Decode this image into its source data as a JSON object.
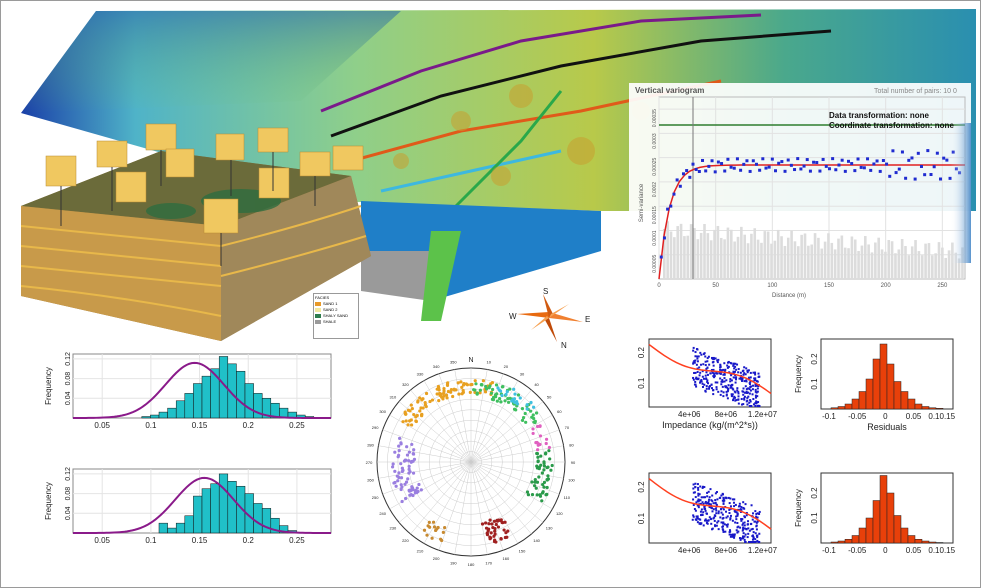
{
  "variogram": {
    "title": "Vertical variogram",
    "pairs_label": "Total number of pairs: 10 0",
    "data_transform": "Data transformation: none",
    "coord_transform": "Coordinate transformation: none",
    "ylabel": "Semi-variance",
    "xlabel": "Distance (m)",
    "xticks": [
      "0",
      "50",
      "100",
      "150",
      "200",
      "250"
    ],
    "yticks": [
      "0.00005",
      "0.0001",
      "0.00015",
      "0.0002",
      "0.00025",
      "0.0003",
      "0.00035"
    ]
  },
  "facies_legend": {
    "title": "FACIES",
    "items": [
      "SAND 1",
      "SAND 2",
      "SHALY SAND",
      "SHALE"
    ],
    "colors": [
      "#e89a2a",
      "#f2e9a0",
      "#2e7d4f",
      "#9a9a9a"
    ]
  },
  "compass": {
    "n": "N",
    "s": "S",
    "e": "E",
    "w": "W"
  },
  "histograms": [
    {
      "ylabel": "Frequency",
      "yticks": [
        "0.04",
        "0.08",
        "0.12"
      ],
      "xticks": [
        "0.05",
        "0.1",
        "0.15",
        "0.2",
        "0.25"
      ],
      "values": [
        0,
        0,
        0,
        0,
        0,
        0,
        0,
        0,
        0.003,
        0.006,
        0.012,
        0.02,
        0.035,
        0.05,
        0.07,
        0.085,
        0.1,
        0.125,
        0.11,
        0.095,
        0.07,
        0.05,
        0.04,
        0.03,
        0.02,
        0.012,
        0.006,
        0.003,
        0,
        0
      ]
    },
    {
      "ylabel": "Frequency",
      "yticks": [
        "0.04",
        "0.08",
        "0.12"
      ],
      "xticks": [
        "0.05",
        "0.1",
        "0.15",
        "0.2",
        "0.25"
      ],
      "values": [
        0,
        0,
        0,
        0,
        0,
        0,
        0,
        0,
        0,
        0,
        0.02,
        0.01,
        0.02,
        0.035,
        0.075,
        0.09,
        0.1,
        0.12,
        0.105,
        0.095,
        0.08,
        0.06,
        0.05,
        0.03,
        0.015,
        0.005,
        0,
        0,
        0,
        0
      ]
    }
  ],
  "stereonet": {
    "north": "N",
    "ring_labels": [
      "10",
      "20",
      "30",
      "40",
      "50",
      "60",
      "70",
      "80",
      "90",
      "100",
      "110",
      "120",
      "130",
      "140",
      "150",
      "160",
      "170",
      "180",
      "190",
      "200",
      "210",
      "220",
      "230",
      "240",
      "250",
      "260",
      "270",
      "280",
      "290",
      "300",
      "310",
      "320",
      "330",
      "340",
      "350"
    ]
  },
  "scatter_plots": [
    {
      "xlabel": "Impedance (kg/(m^2*s))",
      "xticks": [
        "4e+06",
        "8e+06",
        "1.2e+07"
      ],
      "yticks": [
        "0.1",
        "0.2"
      ]
    },
    {
      "xlabel": "",
      "xticks": [
        "4e+06",
        "8e+06",
        "1.2e+07"
      ],
      "yticks": [
        "0.1",
        "0.2"
      ]
    }
  ],
  "residual_histograms": [
    {
      "ylabel": "Frequency",
      "xlabel": "Residuals",
      "xticks": [
        "-0.1",
        "-0.05",
        "0",
        "0.05",
        "0.10.15"
      ],
      "yticks": [
        "0.1",
        "0.2"
      ],
      "values": [
        0.005,
        0.01,
        0.02,
        0.04,
        0.07,
        0.12,
        0.2,
        0.26,
        0.18,
        0.11,
        0.07,
        0.04,
        0.02,
        0.01,
        0.005,
        0.003
      ]
    },
    {
      "ylabel": "Frequency",
      "xlabel": "",
      "xticks": [
        "-0.1",
        "-0.05",
        "0",
        "0.05",
        "0.10.15"
      ],
      "yticks": [
        "0.1",
        "0.2"
      ],
      "values": [
        0.004,
        0.008,
        0.015,
        0.03,
        0.06,
        0.1,
        0.17,
        0.27,
        0.2,
        0.11,
        0.06,
        0.03,
        0.015,
        0.008,
        0.004,
        0.002
      ]
    }
  ]
}
